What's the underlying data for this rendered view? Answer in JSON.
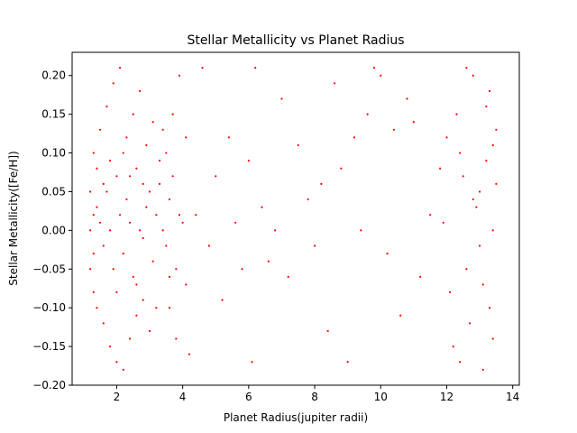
{
  "chart_data": {
    "type": "scatter",
    "title": "Stellar Metallicity vs Planet Radius",
    "xlabel": "Planet Radius(jupiter radii)",
    "ylabel": "Stellar Metallicity([Fe/H])",
    "xlim": [
      0.65,
      14.2
    ],
    "ylim": [
      -0.2,
      0.23
    ],
    "xticks": [
      2,
      4,
      6,
      8,
      10,
      12,
      14
    ],
    "yticks": [
      -0.2,
      -0.15,
      -0.1,
      -0.05,
      0.0,
      0.05,
      0.1,
      0.15,
      0.2
    ],
    "xtick_labels": [
      "2",
      "4",
      "6",
      "8",
      "10",
      "12",
      "14"
    ],
    "ytick_labels": [
      "−0.20",
      "−0.15",
      "−0.10",
      "−0.05",
      "0.00",
      "0.05",
      "0.10",
      "0.15",
      "0.20"
    ],
    "grid": false,
    "marker_color": "#ff0000",
    "series": [
      {
        "points": [
          [
            1.4,
            0.03
          ],
          [
            1.5,
            0.01
          ],
          [
            1.6,
            -0.02
          ],
          [
            1.7,
            0.05
          ],
          [
            1.8,
            0.0
          ],
          [
            1.9,
            -0.05
          ],
          [
            2.0,
            0.07
          ],
          [
            2.1,
            0.02
          ],
          [
            2.2,
            -0.03
          ],
          [
            2.3,
            0.04
          ],
          [
            2.4,
            0.01
          ],
          [
            2.5,
            -0.06
          ],
          [
            2.6,
            0.08
          ],
          [
            2.7,
            0.0
          ],
          [
            2.8,
            -0.01
          ],
          [
            2.9,
            0.03
          ],
          [
            3.0,
            0.05
          ],
          [
            3.1,
            -0.04
          ],
          [
            3.2,
            0.02
          ],
          [
            3.3,
            0.06
          ],
          [
            1.3,
            0.1
          ],
          [
            1.5,
            0.13
          ],
          [
            1.7,
            0.16
          ],
          [
            1.9,
            0.19
          ],
          [
            2.1,
            0.21
          ],
          [
            2.3,
            0.12
          ],
          [
            2.5,
            0.15
          ],
          [
            2.7,
            0.18
          ],
          [
            2.9,
            0.11
          ],
          [
            3.1,
            0.14
          ],
          [
            1.4,
            -0.1
          ],
          [
            1.6,
            -0.12
          ],
          [
            1.8,
            -0.15
          ],
          [
            2.0,
            -0.17
          ],
          [
            2.2,
            -0.18
          ],
          [
            2.4,
            -0.14
          ],
          [
            2.6,
            -0.11
          ],
          [
            2.8,
            -0.09
          ],
          [
            3.0,
            -0.13
          ],
          [
            1.3,
            -0.08
          ],
          [
            3.4,
            0.0
          ],
          [
            3.5,
            -0.02
          ],
          [
            3.6,
            0.04
          ],
          [
            3.7,
            0.07
          ],
          [
            3.8,
            -0.05
          ],
          [
            3.9,
            0.02
          ],
          [
            4.0,
            0.01
          ],
          [
            4.1,
            -0.07
          ],
          [
            3.5,
            0.1
          ],
          [
            3.7,
            0.15
          ],
          [
            3.9,
            0.2
          ],
          [
            3.6,
            -0.1
          ],
          [
            3.8,
            -0.14
          ],
          [
            4.1,
            0.12
          ],
          [
            4.2,
            -0.16
          ],
          [
            3.3,
            0.09
          ],
          [
            1.2,
            0.0
          ],
          [
            1.2,
            0.05
          ],
          [
            1.2,
            -0.05
          ],
          [
            1.3,
            0.02
          ],
          [
            1.3,
            -0.03
          ],
          [
            1.4,
            0.08
          ],
          [
            1.6,
            0.06
          ],
          [
            1.8,
            0.09
          ],
          [
            2.0,
            -0.08
          ],
          [
            2.2,
            0.1
          ],
          [
            2.4,
            0.07
          ],
          [
            2.6,
            -0.07
          ],
          [
            2.8,
            0.06
          ],
          [
            3.2,
            -0.1
          ],
          [
            3.4,
            0.13
          ],
          [
            3.6,
            -0.06
          ],
          [
            4.4,
            0.02
          ],
          [
            4.6,
            0.21
          ],
          [
            4.8,
            -0.02
          ],
          [
            5.0,
            0.07
          ],
          [
            5.2,
            -0.09
          ],
          [
            5.4,
            0.12
          ],
          [
            5.6,
            0.01
          ],
          [
            5.8,
            -0.05
          ],
          [
            6.0,
            0.09
          ],
          [
            6.1,
            -0.17
          ],
          [
            6.2,
            0.21
          ],
          [
            6.4,
            0.03
          ],
          [
            6.6,
            -0.04
          ],
          [
            6.8,
            0.0
          ],
          [
            7.0,
            0.17
          ],
          [
            7.2,
            -0.06
          ],
          [
            7.5,
            0.11
          ],
          [
            7.8,
            0.04
          ],
          [
            8.0,
            -0.02
          ],
          [
            8.2,
            0.06
          ],
          [
            8.4,
            -0.13
          ],
          [
            8.6,
            0.19
          ],
          [
            8.8,
            0.08
          ],
          [
            9.0,
            -0.17
          ],
          [
            9.2,
            0.12
          ],
          [
            9.4,
            0.0
          ],
          [
            9.6,
            0.15
          ],
          [
            9.8,
            0.21
          ],
          [
            10.0,
            0.2
          ],
          [
            10.2,
            -0.03
          ],
          [
            10.4,
            0.13
          ],
          [
            10.6,
            -0.11
          ],
          [
            10.8,
            0.17
          ],
          [
            11.0,
            0.14
          ],
          [
            11.2,
            -0.06
          ],
          [
            11.5,
            0.02
          ],
          [
            11.8,
            0.08
          ],
          [
            12.0,
            0.12
          ],
          [
            12.2,
            -0.15
          ],
          [
            12.4,
            0.1
          ],
          [
            12.6,
            -0.05
          ],
          [
            12.8,
            0.2
          ],
          [
            13.0,
            0.05
          ],
          [
            13.1,
            -0.18
          ],
          [
            13.2,
            0.16
          ],
          [
            13.3,
            -0.1
          ],
          [
            13.4,
            0.0
          ],
          [
            13.5,
            0.13
          ],
          [
            12.5,
            0.07
          ],
          [
            12.7,
            -0.12
          ],
          [
            12.9,
            0.03
          ],
          [
            13.0,
            -0.02
          ],
          [
            13.2,
            0.09
          ],
          [
            13.3,
            0.18
          ],
          [
            13.4,
            -0.14
          ],
          [
            13.5,
            0.06
          ],
          [
            12.3,
            0.15
          ],
          [
            12.1,
            -0.08
          ],
          [
            11.9,
            0.01
          ],
          [
            12.6,
            0.21
          ],
          [
            13.1,
            -0.07
          ],
          [
            12.8,
            0.04
          ],
          [
            13.4,
            0.11
          ],
          [
            12.4,
            -0.17
          ]
        ]
      }
    ]
  }
}
